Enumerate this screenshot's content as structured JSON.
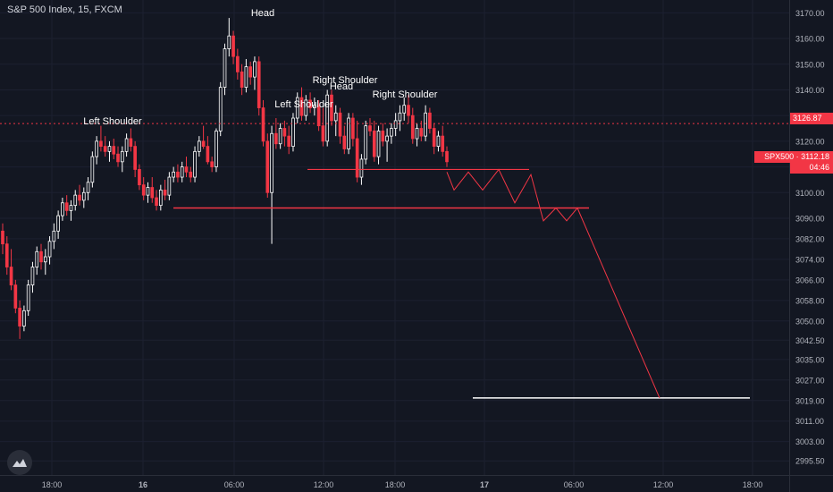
{
  "header": {
    "title": "S&P 500 Index, 15, FXCM"
  },
  "price_tags": {
    "level": "3126.87",
    "symbol_price": "SPX500 · 3112.18",
    "countdown": "04:46"
  },
  "annotations": [
    {
      "text": "Head"
    },
    {
      "text": "Left Shoulder"
    },
    {
      "text": "Left Shoulder"
    },
    {
      "text": "Right Shoulder"
    },
    {
      "text": "Head"
    },
    {
      "text": "Right Shoulder"
    }
  ],
  "colors": {
    "bg": "#131722",
    "up": "#ffffff",
    "down": "#f23645",
    "grid": "#1c2030",
    "axis_text": "#b2b5be",
    "neckline": "#f23645",
    "target": "#ffffff"
  },
  "chart_data": {
    "type": "candlestick",
    "title": "S&P 500 Index, 15, FXCM",
    "ylim": [
      2990,
      3175
    ],
    "y_ticks": [
      "3170.00",
      "3160.00",
      "3150.00",
      "3140.00",
      "3130.00",
      "3120.00",
      "3110.00",
      "3100.00",
      "3090.00",
      "3082.00",
      "3074.00",
      "3066.00",
      "3058.00",
      "3050.00",
      "3042.50",
      "3035.00",
      "3027.00",
      "3019.00",
      "3011.00",
      "3003.00",
      "2995.50"
    ],
    "x_ticks": [
      "18:00",
      "16",
      "06:00",
      "12:00",
      "18:00",
      "17",
      "06:00",
      "12:00",
      "18:00"
    ],
    "levels": {
      "resistance_dotted": 3126.87,
      "last_price": 3112.18
    },
    "pattern_lines": [
      {
        "name": "neckline-upper",
        "y": 3109
      },
      {
        "name": "neckline-lower",
        "y": 3094
      },
      {
        "name": "target",
        "y": 3020
      }
    ],
    "projection": [
      3108,
      3101,
      3108,
      3101,
      3109,
      3096,
      3107,
      3089,
      3094,
      3089,
      3094,
      3020
    ],
    "ohlc": [
      [
        3085,
        3088,
        3076,
        3080
      ],
      [
        3080,
        3083,
        3068,
        3071
      ],
      [
        3071,
        3078,
        3062,
        3064
      ],
      [
        3064,
        3066,
        3053,
        3055
      ],
      [
        3055,
        3058,
        3043,
        3048
      ],
      [
        3048,
        3056,
        3046,
        3054
      ],
      [
        3054,
        3066,
        3052,
        3064
      ],
      [
        3064,
        3073,
        3061,
        3071
      ],
      [
        3071,
        3079,
        3068,
        3077
      ],
      [
        3077,
        3080,
        3070,
        3073
      ],
      [
        3073,
        3078,
        3068,
        3075
      ],
      [
        3075,
        3083,
        3072,
        3081
      ],
      [
        3081,
        3088,
        3078,
        3085
      ],
      [
        3085,
        3093,
        3082,
        3091
      ],
      [
        3091,
        3098,
        3089,
        3096
      ],
      [
        3096,
        3099,
        3091,
        3093
      ],
      [
        3093,
        3097,
        3089,
        3095
      ],
      [
        3095,
        3101,
        3093,
        3099
      ],
      [
        3099,
        3103,
        3095,
        3097
      ],
      [
        3097,
        3102,
        3094,
        3100
      ],
      [
        3100,
        3106,
        3097,
        3104
      ],
      [
        3104,
        3116,
        3102,
        3114
      ],
      [
        3114,
        3122,
        3111,
        3120
      ],
      [
        3120,
        3126,
        3116,
        3118
      ],
      [
        3118,
        3122,
        3114,
        3116
      ],
      [
        3116,
        3120,
        3112,
        3118
      ],
      [
        3118,
        3121,
        3113,
        3115
      ],
      [
        3115,
        3118,
        3110,
        3112
      ],
      [
        3112,
        3118,
        3108,
        3116
      ],
      [
        3116,
        3123,
        3114,
        3121
      ],
      [
        3121,
        3125,
        3116,
        3118
      ],
      [
        3118,
        3120,
        3106,
        3109
      ],
      [
        3109,
        3111,
        3101,
        3103
      ],
      [
        3103,
        3106,
        3097,
        3099
      ],
      [
        3099,
        3104,
        3096,
        3102
      ],
      [
        3102,
        3106,
        3096,
        3098
      ],
      [
        3098,
        3101,
        3093,
        3095
      ],
      [
        3095,
        3103,
        3093,
        3101
      ],
      [
        3101,
        3105,
        3097,
        3099
      ],
      [
        3099,
        3108,
        3097,
        3106
      ],
      [
        3106,
        3110,
        3104,
        3108
      ],
      [
        3108,
        3111,
        3104,
        3106
      ],
      [
        3106,
        3112,
        3104,
        3110
      ],
      [
        3110,
        3114,
        3106,
        3108
      ],
      [
        3108,
        3110,
        3104,
        3106
      ],
      [
        3106,
        3118,
        3104,
        3116
      ],
      [
        3116,
        3122,
        3114,
        3120
      ],
      [
        3120,
        3126,
        3117,
        3118
      ],
      [
        3118,
        3122,
        3111,
        3112
      ],
      [
        3112,
        3114,
        3108,
        3110
      ],
      [
        3110,
        3125,
        3108,
        3124
      ],
      [
        3124,
        3143,
        3122,
        3141
      ],
      [
        3141,
        3158,
        3138,
        3156
      ],
      [
        3156,
        3168,
        3153,
        3161
      ],
      [
        3161,
        3163,
        3150,
        3153
      ],
      [
        3153,
        3156,
        3144,
        3147
      ],
      [
        3147,
        3150,
        3138,
        3141
      ],
      [
        3141,
        3152,
        3139,
        3149
      ],
      [
        3149,
        3151,
        3142,
        3145
      ],
      [
        3145,
        3153,
        3140,
        3151
      ],
      [
        3151,
        3153,
        3130,
        3133
      ],
      [
        3133,
        3136,
        3118,
        3120
      ],
      [
        3120,
        3123,
        3098,
        3100
      ],
      [
        3100,
        3126,
        3080,
        3123
      ],
      [
        3123,
        3129,
        3117,
        3119
      ],
      [
        3119,
        3127,
        3117,
        3125
      ],
      [
        3125,
        3128,
        3118,
        3122
      ],
      [
        3122,
        3126,
        3115,
        3118
      ],
      [
        3118,
        3131,
        3116,
        3129
      ],
      [
        3129,
        3139,
        3127,
        3137
      ],
      [
        3137,
        3141,
        3128,
        3130
      ],
      [
        3130,
        3138,
        3128,
        3136
      ],
      [
        3136,
        3139,
        3131,
        3133
      ],
      [
        3133,
        3137,
        3130,
        3134
      ],
      [
        3134,
        3136,
        3124,
        3126
      ],
      [
        3126,
        3133,
        3118,
        3120
      ],
      [
        3120,
        3140,
        3118,
        3138
      ],
      [
        3138,
        3140,
        3126,
        3128
      ],
      [
        3128,
        3134,
        3122,
        3131
      ],
      [
        3131,
        3133,
        3119,
        3122
      ],
      [
        3122,
        3126,
        3115,
        3117
      ],
      [
        3117,
        3131,
        3115,
        3129
      ],
      [
        3129,
        3131,
        3118,
        3121
      ],
      [
        3121,
        3128,
        3104,
        3106
      ],
      [
        3106,
        3115,
        3103,
        3113
      ],
      [
        3113,
        3128,
        3111,
        3126
      ],
      [
        3126,
        3129,
        3122,
        3124
      ],
      [
        3124,
        3128,
        3112,
        3114
      ],
      [
        3114,
        3126,
        3111,
        3124
      ],
      [
        3124,
        3127,
        3118,
        3120
      ],
      [
        3120,
        3125,
        3112,
        3122
      ],
      [
        3122,
        3127,
        3119,
        3125
      ],
      [
        3125,
        3131,
        3122,
        3128
      ],
      [
        3128,
        3134,
        3124,
        3131
      ],
      [
        3131,
        3137,
        3128,
        3134
      ],
      [
        3134,
        3138,
        3127,
        3130
      ],
      [
        3130,
        3133,
        3119,
        3121
      ],
      [
        3121,
        3127,
        3118,
        3125
      ],
      [
        3125,
        3128,
        3120,
        3122
      ],
      [
        3122,
        3134,
        3120,
        3131
      ],
      [
        3131,
        3133,
        3123,
        3125
      ],
      [
        3125,
        3127,
        3115,
        3118
      ],
      [
        3118,
        3124,
        3116,
        3122
      ],
      [
        3122,
        3126,
        3114,
        3116
      ],
      [
        3116,
        3118,
        3110,
        3112
      ]
    ]
  }
}
